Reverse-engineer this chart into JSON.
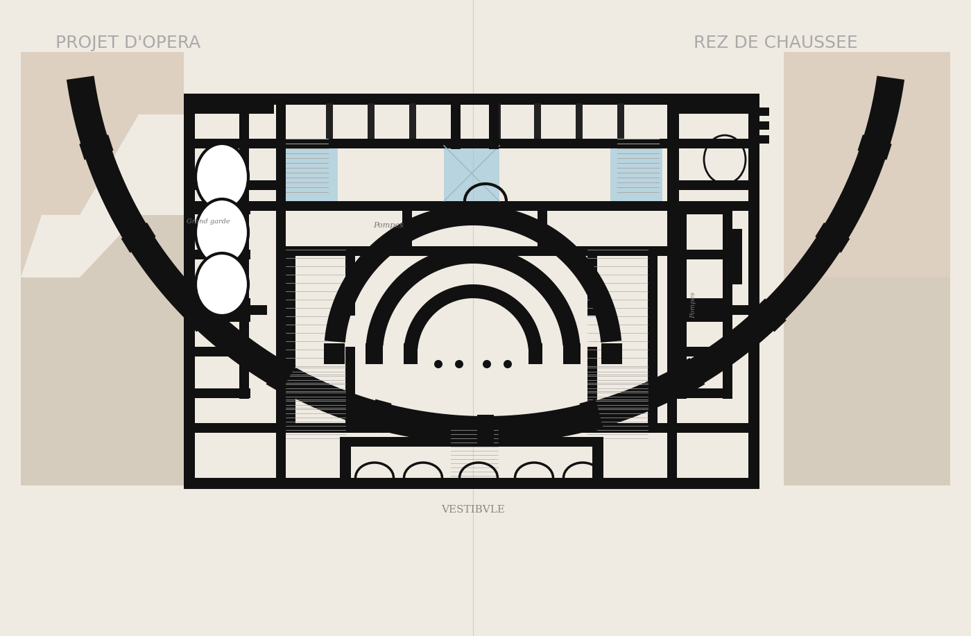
{
  "title_left": "PROJET D'OPERA",
  "title_right": "REZ DE CHAUSSEE",
  "label_pompes": "Pompes",
  "label_vestibule": "VESTIBVLE",
  "label_grand_garde": "Grand garde",
  "bg_paper": "#f0ebe2",
  "wall_color": "#111111",
  "light_blue": "#b8d4de",
  "shadow_left": "#d9c9b8",
  "shadow_right": "#d9c9b8",
  "text_color": "#888888",
  "stair_color": "#999999"
}
